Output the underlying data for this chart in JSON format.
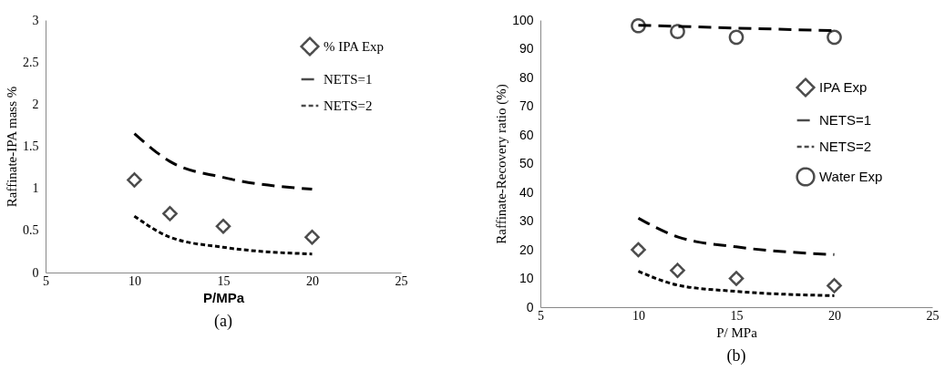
{
  "chart_data": [
    {
      "type": "scatter",
      "xlabel": "P/MPa",
      "ylabel": "Raffinate-IPA mass %",
      "annotations": [
        "(a)"
      ],
      "xlim": [
        5,
        25
      ],
      "xticks": [
        5,
        10,
        15,
        20,
        25
      ],
      "ylim": [
        0,
        3
      ],
      "yticks": [
        0,
        0.5,
        1,
        1.5,
        2,
        2.5,
        3
      ],
      "legend": "top right",
      "series": [
        {
          "name": "% IPA Exp",
          "marker": "diamond",
          "color": "#000000",
          "x": [
            10,
            12,
            15,
            20
          ],
          "values": [
            1.1,
            0.7,
            0.55,
            0.42
          ]
        },
        {
          "name": "NETS=1",
          "type": "line",
          "line_style": "dashed",
          "marker": "none",
          "color": "#000000",
          "x": [
            10,
            12,
            15,
            20
          ],
          "values": [
            1.65,
            1.32,
            1.13,
            0.99
          ]
        },
        {
          "name": "NETS=2",
          "type": "line",
          "line_style": "dashed",
          "marker": "none",
          "color": "#000000",
          "x": [
            10,
            12,
            15,
            20
          ],
          "values": [
            0.67,
            0.42,
            0.3,
            0.22
          ]
        }
      ]
    },
    {
      "type": "scatter",
      "xlabel": "P/ MPa",
      "ylabel": "Raffinate-Recovery ratio (%)",
      "annotations": [
        "(b)"
      ],
      "xlim": [
        5,
        25
      ],
      "xticks": [
        5,
        10,
        15,
        20,
        25
      ],
      "ylim": [
        0,
        100
      ],
      "yticks": [
        0,
        10,
        20,
        30,
        40,
        50,
        60,
        70,
        80,
        90,
        100
      ],
      "legend": "right",
      "series": [
        {
          "name": "IPA Exp",
          "marker": "diamond",
          "color": "#000000",
          "x": [
            10,
            12,
            15,
            20
          ],
          "values": [
            20,
            12.8,
            10,
            7.5
          ]
        },
        {
          "name": "NETS=1",
          "type": "line",
          "line_style": "dashed",
          "marker": "none",
          "color": "#000000",
          "x": [
            10,
            12,
            15,
            20
          ],
          "values": [
            31,
            24.5,
            21,
            18.3
          ]
        },
        {
          "name": "NETS=2",
          "type": "line",
          "line_style": "dashed",
          "marker": "none",
          "color": "#000000",
          "x": [
            10,
            12,
            15,
            20
          ],
          "values": [
            12.5,
            7.7,
            5.5,
            4
          ]
        },
        {
          "name": "Water Exp",
          "marker": "circle",
          "color": "#000000",
          "x": [
            10,
            12,
            15,
            20
          ],
          "values": [
            98,
            96,
            94,
            94
          ]
        },
        {
          "type": "line",
          "line_style": "dashed",
          "marker": "none",
          "color": "#000000",
          "x": [
            10,
            12,
            15,
            20
          ],
          "values": [
            98.2,
            97.8,
            97.2,
            96.3
          ]
        }
      ]
    }
  ]
}
